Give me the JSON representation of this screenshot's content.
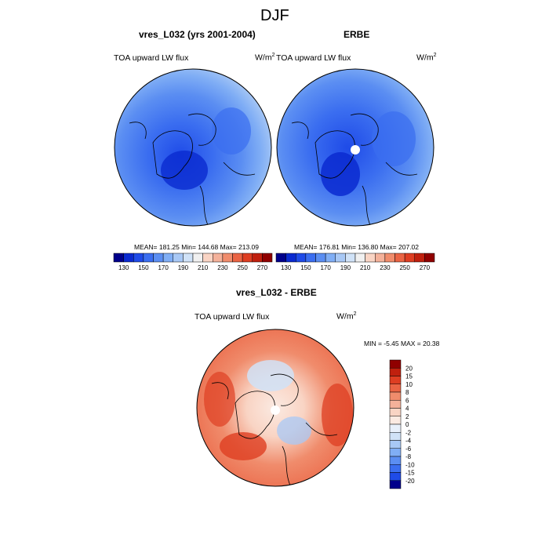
{
  "figure": {
    "title": "DJF"
  },
  "panels": [
    {
      "title": "vres_L032 (yrs 2001-2004)",
      "variable": "TOA upward LW flux",
      "units_base": "W/m",
      "units_exp": "2",
      "stats": "MEAN= 181.25  Min= 144.68  Max= 213.09"
    },
    {
      "title": "ERBE",
      "variable": "TOA upward LW flux",
      "units_base": "W/m",
      "units_exp": "2",
      "stats": "MEAN= 176.81  Min= 136.80  Max= 207.02"
    },
    {
      "title": "vres_L032 - ERBE",
      "variable": "TOA upward LW flux",
      "units_base": "W/m",
      "units_exp": "2",
      "stats": "MIN =  -5.45 MAX =  20.38"
    }
  ],
  "colorbar_abs": {
    "labels": [
      "130",
      "150",
      "170",
      "190",
      "210",
      "230",
      "250",
      "270"
    ],
    "colors": [
      "#00008b",
      "#0a2ad0",
      "#1f4be8",
      "#3b6ef0",
      "#5b8ef2",
      "#80aef5",
      "#a8c8f5",
      "#d0e2f7",
      "#f0f0f0",
      "#f9d4c4",
      "#f4b19a",
      "#f08c6c",
      "#ea6444",
      "#de3e22",
      "#c0200e",
      "#900000"
    ]
  },
  "colorbar_diff": {
    "labels": [
      "20",
      "15",
      "10",
      "8",
      "6",
      "4",
      "2",
      "0",
      "-2",
      "-4",
      "-6",
      "-8",
      "-10",
      "-15",
      "-20"
    ],
    "colors": [
      "#900000",
      "#c0200e",
      "#de3e22",
      "#ea6444",
      "#f08c6c",
      "#f4b19a",
      "#f9d4c4",
      "#fbeae2",
      "#e8f0fb",
      "#d0e2f7",
      "#a8c8f5",
      "#80aef5",
      "#5b8ef2",
      "#3b6ef0",
      "#1f4be8",
      "#00008b"
    ]
  },
  "colors": {
    "map_base_abs": "#5c8ff2",
    "map_base_diff": "#ef7f5c"
  }
}
